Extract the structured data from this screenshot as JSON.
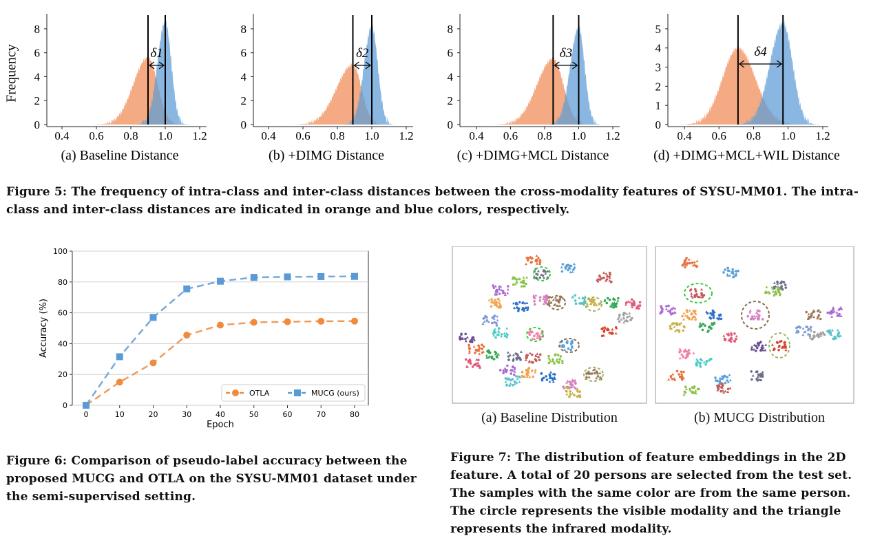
{
  "figure5": {
    "ylabel": "Frequency",
    "caption": "Figure 5: The frequency of intra-class and inter-class distances between the cross-modality features of SYSU-MM01. The intra-class and inter-class distances are indicated in orange and blue colors, respectively.",
    "colors": {
      "intra": "#f08a55",
      "inter": "#5b9bd5"
    },
    "xticks": [
      "0.4",
      "0.6",
      "0.8",
      "1.0",
      "1.2"
    ]
  },
  "figure6": {
    "caption": "Figure 6: Comparison of pseudo-label accuracy between the proposed MUCG and OTLA on the SYSU-MM01 dataset under the semi-supervised setting."
  },
  "figure7": {
    "caption": "Figure 7: The distribution of feature embeddings in the 2D feature. A total of 20 persons are selected from the test set. The samples with the same color are from the same person. The circle represents the visible modality and the triangle represents the infrared modality.",
    "panels": [
      {
        "label": "(a) Baseline Distribution"
      },
      {
        "label": "(b) MUCG Distribution"
      }
    ]
  },
  "chart_data": [
    {
      "type": "area",
      "subtitle": "(a) Baseline Distribution",
      "delta_label": "δ1",
      "ylim": [
        0,
        8.8
      ],
      "xlim": [
        0.3,
        1.25
      ],
      "yticks": [
        0,
        2,
        4,
        6,
        8
      ],
      "series": [
        {
          "peak_x": 0.9,
          "peak_y": 5.6,
          "sigma_left": 0.085,
          "sigma_right": 0.055
        },
        {
          "peak_x": 1.0,
          "peak_y": 8.6,
          "sigma_left": 0.045,
          "sigma_right": 0.035
        }
      ],
      "intra_mean": 0.9,
      "inter_mean": 1.0
    },
    {
      "type": "area",
      "subtitle": "(b) +DIMG Distance",
      "delta_label": "δ2",
      "ylim": [
        0,
        8.8
      ],
      "xlim": [
        0.3,
        1.25
      ],
      "yticks": [
        0,
        2,
        4,
        6,
        8
      ],
      "series": [
        {
          "peak_x": 0.89,
          "peak_y": 5.0,
          "sigma_left": 0.095,
          "sigma_right": 0.05
        },
        {
          "peak_x": 1.0,
          "peak_y": 8.2,
          "sigma_left": 0.045,
          "sigma_right": 0.035
        }
      ],
      "intra_mean": 0.89,
      "inter_mean": 1.0
    },
    {
      "type": "area",
      "subtitle": "(c) +DIMG+MCL Distance",
      "delta_label": "δ3",
      "ylim": [
        0,
        8.8
      ],
      "xlim": [
        0.3,
        1.25
      ],
      "yticks": [
        0,
        2,
        4,
        6,
        8
      ],
      "series": [
        {
          "peak_x": 0.85,
          "peak_y": 5.5,
          "sigma_left": 0.095,
          "sigma_right": 0.06
        },
        {
          "peak_x": 1.0,
          "peak_y": 8.1,
          "sigma_left": 0.05,
          "sigma_right": 0.035
        }
      ],
      "intra_mean": 0.85,
      "inter_mean": 1.0
    },
    {
      "type": "area",
      "subtitle": "(d) +DIMG+MCL+WIL Distance",
      "delta_label": "δ4",
      "ylim": [
        0,
        5.5
      ],
      "xlim": [
        0.3,
        1.25
      ],
      "yticks": [
        0,
        1,
        2,
        3,
        4,
        5
      ],
      "series": [
        {
          "peak_x": 0.71,
          "peak_y": 4.0,
          "sigma_left": 0.09,
          "sigma_right": 0.1
        },
        {
          "peak_x": 0.97,
          "peak_y": 5.3,
          "sigma_left": 0.075,
          "sigma_right": 0.055
        }
      ],
      "intra_mean": 0.71,
      "inter_mean": 0.97
    },
    {
      "type": "line",
      "xlabel": "Epoch",
      "ylabel": "Accuracy (%)",
      "x": [
        0,
        10,
        20,
        30,
        40,
        50,
        60,
        70,
        80
      ],
      "ylim": [
        0,
        100
      ],
      "yticks": [
        0,
        20,
        40,
        60,
        80,
        100
      ],
      "grid": true,
      "legend": "bottom-right",
      "series": [
        {
          "name": "OTLA",
          "color": "#f08a3c",
          "marker": "circle",
          "values": [
            0,
            15,
            27.5,
            45.5,
            52,
            53.8,
            54.2,
            54.5,
            54.6
          ]
        },
        {
          "name": "MUCG (ours)",
          "color": "#5b9bd5",
          "marker": "square",
          "values": [
            0,
            31.5,
            57,
            75.5,
            80.5,
            83,
            83.3,
            83.5,
            83.6
          ]
        }
      ]
    }
  ]
}
